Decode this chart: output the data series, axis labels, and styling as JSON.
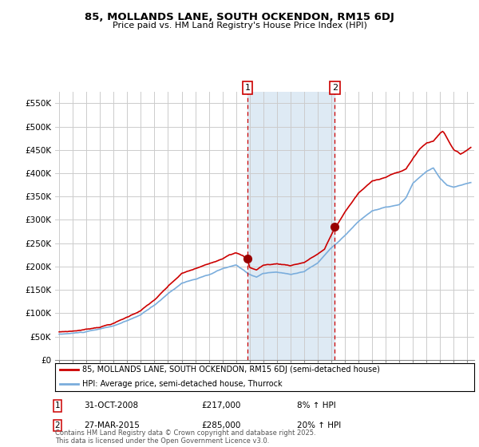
{
  "title": "85, MOLLANDS LANE, SOUTH OCKENDON, RM15 6DJ",
  "subtitle": "Price paid vs. HM Land Registry's House Price Index (HPI)",
  "legend_line1": "85, MOLLANDS LANE, SOUTH OCKENDON, RM15 6DJ (semi-detached house)",
  "legend_line2": "HPI: Average price, semi-detached house, Thurrock",
  "annotation1_date": "31-OCT-2008",
  "annotation1_price": "£217,000",
  "annotation1_hpi": "8% ↑ HPI",
  "annotation2_date": "27-MAR-2015",
  "annotation2_price": "£285,000",
  "annotation2_hpi": "20% ↑ HPI",
  "footnote": "Contains HM Land Registry data © Crown copyright and database right 2025.\nThis data is licensed under the Open Government Licence v3.0.",
  "price_color": "#cc0000",
  "hpi_color": "#7aaddc",
  "vline_color": "#cc0000",
  "background_fill": "#deeaf4",
  "ylim": [
    0,
    575000
  ],
  "yticks": [
    0,
    50000,
    100000,
    150000,
    200000,
    250000,
    300000,
    350000,
    400000,
    450000,
    500000,
    550000
  ],
  "ytick_labels": [
    "£0",
    "£50K",
    "£100K",
    "£150K",
    "£200K",
    "£250K",
    "£300K",
    "£350K",
    "£400K",
    "£450K",
    "£500K",
    "£550K"
  ],
  "sale1_x": 2008.833,
  "sale1_y": 217000,
  "sale2_x": 2015.25,
  "sale2_y": 285000,
  "vline1_x": 2008.833,
  "vline2_x": 2015.25,
  "xlim_left": 1994.7,
  "xlim_right": 2025.5
}
